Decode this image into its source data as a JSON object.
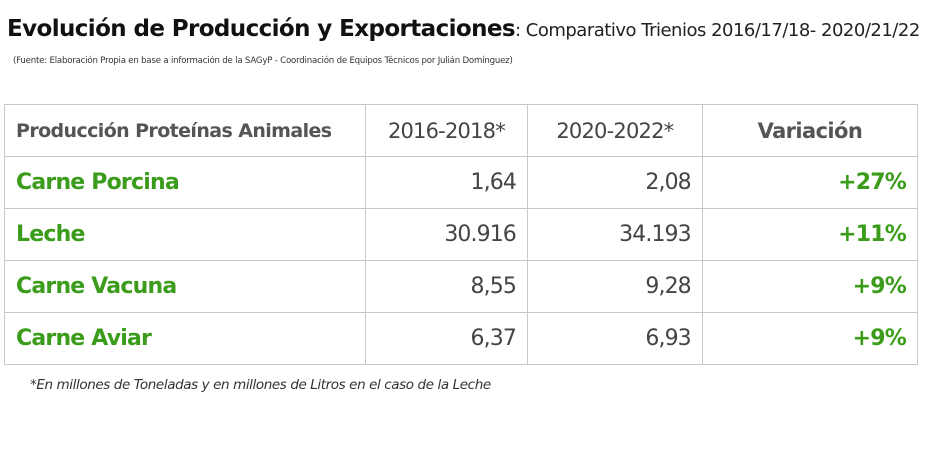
{
  "header": {
    "title": "Evolución de Producción y Exportaciones",
    "separator": ":",
    "subtitle": " Comparativo Trienios 2016/17/18- 2020/21/22",
    "source": "(Fuente: Elaboración Propia en base a información de la SAGyP - Coordinación de Equipos Técnicos por Julián Domínguez)"
  },
  "table": {
    "columns": [
      "Producción Proteínas Animales",
      "2016-2018*",
      "2020-2022*",
      "Variación"
    ],
    "rows": [
      {
        "name": "Carne Porcina",
        "v2016_2018": "1,64",
        "v2020_2022": "2,08",
        "variation": "+27%"
      },
      {
        "name": "Leche",
        "v2016_2018": "30.916",
        "v2020_2022": "34.193",
        "variation": "+11%"
      },
      {
        "name": "Carne Vacuna",
        "v2016_2018": "8,55",
        "v2020_2022": "9,28",
        "variation": "+9%"
      },
      {
        "name": "Carne Aviar",
        "v2016_2018": "6,37",
        "v2020_2022": "6,93",
        "variation": "+9%"
      }
    ]
  },
  "footnote": "*En millones de Toneladas y en millones de Litros en el caso de la Leche",
  "colors": {
    "accent_green": "#3a9c1a",
    "header_gray": "#555555",
    "value_gray": "#444444",
    "border": "#c8c8c8"
  }
}
